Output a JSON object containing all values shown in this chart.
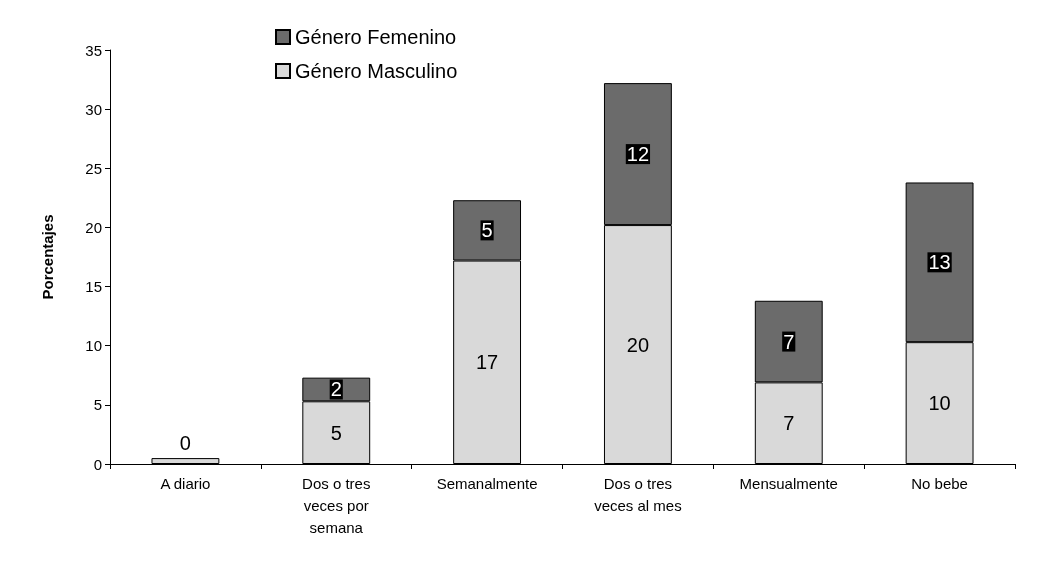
{
  "chart_data": {
    "type": "bar",
    "stacked": true,
    "ylabel": "Porcentajes",
    "categories": [
      "A diario",
      "Dos o tres veces por semana",
      "Semanalmente",
      "Dos o tres veces al mes",
      "Mensualmente",
      "No bebe"
    ],
    "series": [
      {
        "name": "Género Masculino",
        "color": "#d9d9d9",
        "values": [
          0.5,
          5.3,
          17.2,
          20.2,
          6.9,
          10.3
        ],
        "value_labels": [
          "0",
          "5",
          "17",
          "20",
          "7",
          "10"
        ]
      },
      {
        "name": "Género Femenino",
        "color": "#6b6b6b",
        "values": [
          null,
          2,
          5.1,
          12,
          6.9,
          13.5
        ],
        "value_labels": [
          null,
          "2",
          "5",
          "12",
          "7",
          "13"
        ]
      }
    ],
    "ylim": [
      0,
      35
    ],
    "yticks": [
      0,
      5,
      10,
      15,
      20,
      25,
      30,
      35
    ],
    "grid": false,
    "legend": "top"
  }
}
